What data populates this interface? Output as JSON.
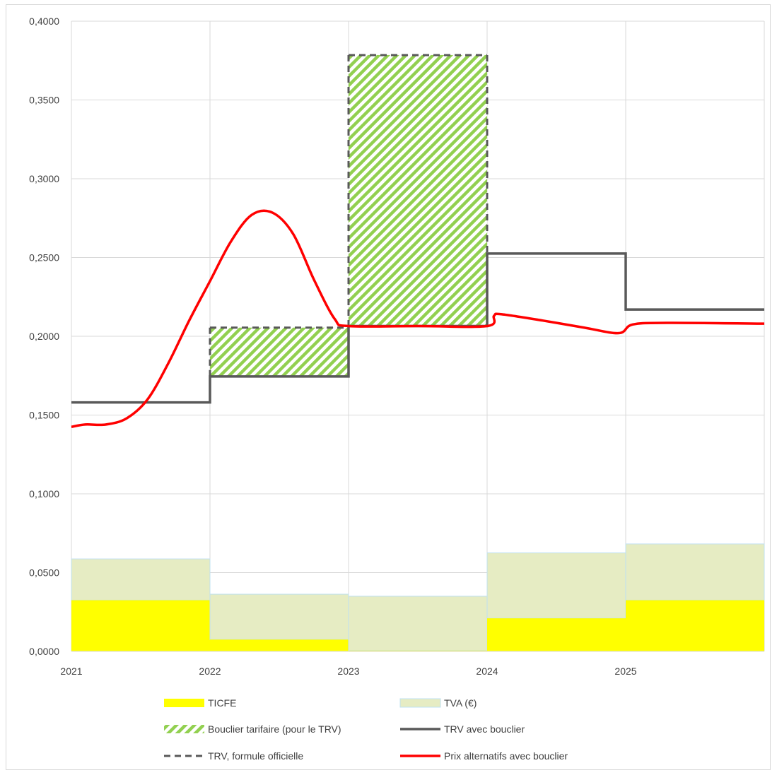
{
  "chart_data": {
    "type": "line",
    "x_ticks": [
      "2021",
      "2022",
      "2023",
      "2024",
      "2025"
    ],
    "y_ticks": [
      "0,0000",
      "0,0500",
      "0,1000",
      "0,1500",
      "0,2000",
      "0,2500",
      "0,3000",
      "0,3500",
      "0,4000"
    ],
    "xlim": [
      2021,
      2026
    ],
    "ylim": [
      0,
      0.4
    ],
    "grid": true,
    "legend_position": "bottom",
    "periods": [
      {
        "start": 2021,
        "end": 2022
      },
      {
        "start": 2022,
        "end": 2023
      },
      {
        "start": 2023,
        "end": 2024
      },
      {
        "start": 2024,
        "end": 2025
      },
      {
        "start": 2025,
        "end": 2026
      }
    ],
    "series": [
      {
        "name": "TICFE",
        "kind": "area-step",
        "color": "#ffff00",
        "values": [
          0.0325,
          0.0075,
          0.0005,
          0.021,
          0.0325
        ]
      },
      {
        "name": "TVA (€)",
        "kind": "area-step-stacked",
        "color": "#e6ecc3",
        "border": "#bfe0f0",
        "values": [
          0.0262,
          0.0288,
          0.0345,
          0.0415,
          0.0357
        ]
      },
      {
        "name": "Bouclier tarifaire (pour le TRV)",
        "kind": "hatched-box",
        "color": "#92d050",
        "boxes": [
          {
            "start": 2022,
            "end": 2023,
            "bottom": 0.1745,
            "top": 0.2055
          },
          {
            "start": 2023,
            "end": 2024,
            "bottom": 0.2065,
            "top": 0.3785
          }
        ]
      },
      {
        "name": "TRV avec bouclier",
        "kind": "step",
        "color": "#595959",
        "values": [
          0.158,
          0.1745,
          0.2065,
          0.2525,
          0.217
        ]
      },
      {
        "name": "TRV, formule officielle",
        "kind": "dashed-step",
        "color": "#595959",
        "values": [
          null,
          0.2055,
          0.3785,
          null,
          null
        ]
      },
      {
        "name": "Prix alternatifs avec  bouclier",
        "kind": "line",
        "color": "#ff0000",
        "points": [
          [
            2021.0,
            0.1425
          ],
          [
            2021.1,
            0.144
          ],
          [
            2021.25,
            0.144
          ],
          [
            2021.4,
            0.148
          ],
          [
            2021.55,
            0.16
          ],
          [
            2021.7,
            0.183
          ],
          [
            2021.85,
            0.21
          ],
          [
            2022.0,
            0.235
          ],
          [
            2022.15,
            0.26
          ],
          [
            2022.3,
            0.277
          ],
          [
            2022.45,
            0.2785
          ],
          [
            2022.6,
            0.265
          ],
          [
            2022.75,
            0.236
          ],
          [
            2022.9,
            0.211
          ],
          [
            2023.0,
            0.2065
          ],
          [
            2023.5,
            0.2065
          ],
          [
            2024.0,
            0.2065
          ],
          [
            2024.05,
            0.213
          ],
          [
            2024.1,
            0.214
          ],
          [
            2024.4,
            0.21
          ],
          [
            2024.7,
            0.2055
          ],
          [
            2024.95,
            0.202
          ],
          [
            2025.05,
            0.2075
          ],
          [
            2025.3,
            0.2085
          ],
          [
            2026.0,
            0.208
          ]
        ]
      }
    ],
    "legend": [
      {
        "label": "TICFE",
        "swatch": "yellow-box"
      },
      {
        "label": "TVA (€)",
        "swatch": "green-box"
      },
      {
        "label": "Bouclier tarifaire (pour le TRV)",
        "swatch": "hatched"
      },
      {
        "label": "TRV avec bouclier",
        "swatch": "gray-line"
      },
      {
        "label": "TRV, formule officielle",
        "swatch": "gray-dashed"
      },
      {
        "label": "Prix alternatifs avec  bouclier",
        "swatch": "red-line"
      }
    ]
  }
}
